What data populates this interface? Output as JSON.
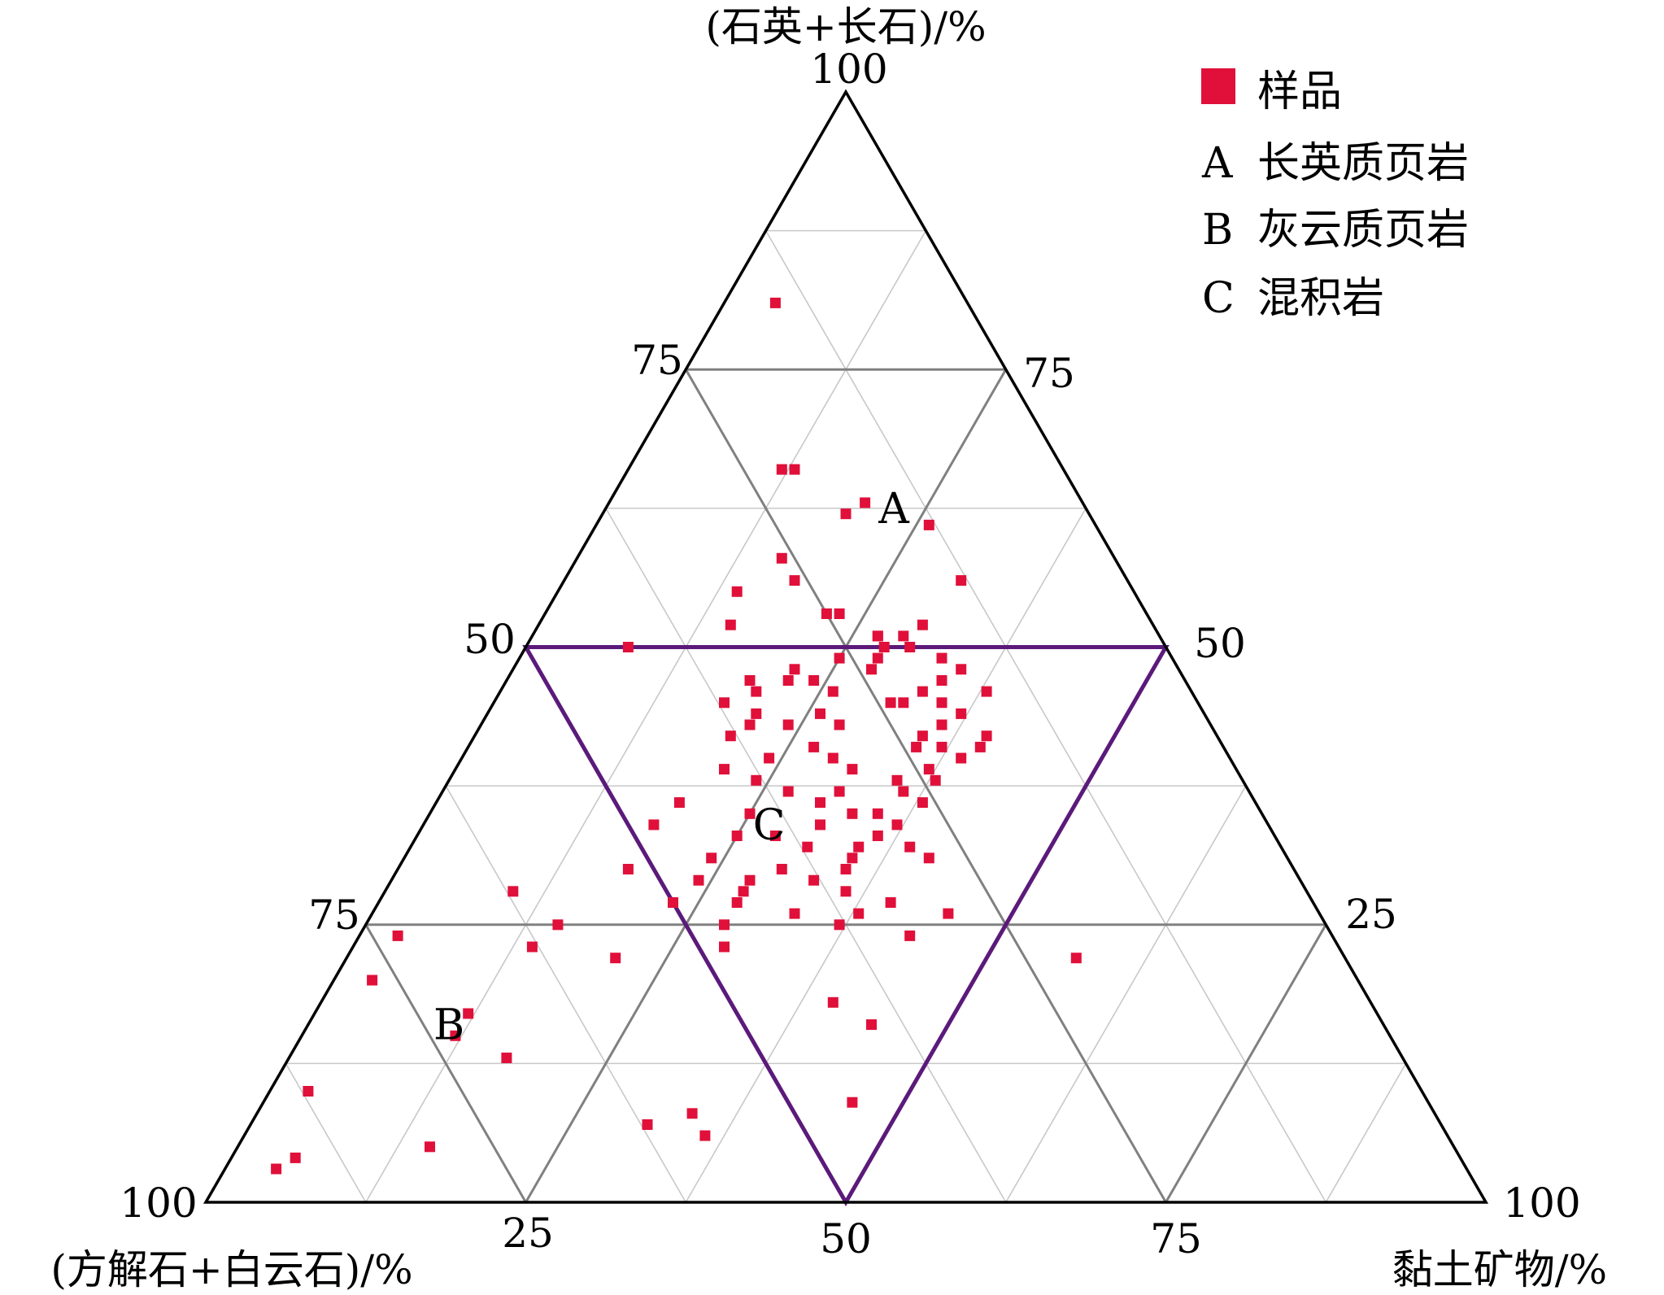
{
  "chart_data": {
    "type": "scatter",
    "subtype": "ternary",
    "axes": {
      "top": {
        "label": "(石英+长石)/%",
        "ticks": [
          "25",
          "50",
          "75",
          "100"
        ]
      },
      "left": {
        "label": "(方解石+白云石)/%",
        "ticks": [
          "25",
          "50",
          "75",
          "100"
        ]
      },
      "right": {
        "label": "黏土矿物/%",
        "ticks": [
          "25",
          "50",
          "75",
          "100"
        ]
      }
    },
    "grid": true,
    "grid_step": 12.5,
    "major_step": 25,
    "colors": {
      "points": "#e0103a",
      "outline": "#000000",
      "major_grid": "#808080",
      "minor_grid": "#c8c8c8",
      "region_c": "#5b1a7a"
    },
    "regions": [
      {
        "label": "A",
        "name": "长英质页岩",
        "marker": [
          62.5,
          15,
          22.5
        ]
      },
      {
        "label": "B",
        "name": "灰云质页岩",
        "marker": [
          16,
          73,
          11
        ]
      },
      {
        "label": "C",
        "name": "混积岩",
        "marker": [
          34,
          39,
          27
        ]
      }
    ],
    "legend": {
      "position": "top-right",
      "marker_label": "样品",
      "entries": [
        {
          "key": "A",
          "text": "长英质页岩"
        },
        {
          "key": "B",
          "text": "灰云质页岩"
        },
        {
          "key": "C",
          "text": "混积岩"
        }
      ]
    },
    "series": [
      {
        "name": "样品",
        "points_note": "each point is [石英+长石, 方解石+白云石, 黏土矿物] in %",
        "points": [
          [
            81,
            15,
            4
          ],
          [
            66,
            22,
            12
          ],
          [
            66,
            21,
            13
          ],
          [
            63,
            17,
            20
          ],
          [
            62,
            19,
            19
          ],
          [
            61,
            13,
            26
          ],
          [
            58,
            26,
            16
          ],
          [
            56,
            26,
            18
          ],
          [
            56,
            13,
            31
          ],
          [
            55,
            31,
            14
          ],
          [
            53,
            24,
            23
          ],
          [
            53,
            25,
            22
          ],
          [
            52,
            33,
            15
          ],
          [
            51,
            22,
            27
          ],
          [
            51,
            22,
            27
          ],
          [
            50,
            42,
            8
          ],
          [
            50,
            22,
            28
          ],
          [
            49,
            23,
            28
          ],
          [
            49,
            26,
            25
          ],
          [
            48,
            24,
            28
          ],
          [
            47,
            29,
            24
          ],
          [
            47,
            31,
            22
          ],
          [
            46,
            34,
            20
          ],
          [
            45,
            24,
            31
          ],
          [
            45,
            23,
            32
          ],
          [
            44,
            30,
            26
          ],
          [
            43,
            36,
            21
          ],
          [
            43,
            29,
            28
          ],
          [
            42,
            18,
            40
          ],
          [
            41,
            24,
            35
          ],
          [
            40,
            31,
            29
          ],
          [
            39,
            40,
            21
          ],
          [
            38,
            24,
            38
          ],
          [
            37,
            32,
            31
          ],
          [
            36,
            45,
            19
          ],
          [
            35,
            32,
            33
          ],
          [
            34,
            48,
            18
          ],
          [
            33,
            39,
            28
          ],
          [
            32,
            33,
            35
          ],
          [
            31,
            28,
            41
          ],
          [
            30,
            52,
            18
          ],
          [
            29,
            38,
            33
          ],
          [
            28,
            62,
            10
          ],
          [
            27,
            33,
            40
          ],
          [
            26,
            36,
            38
          ],
          [
            25,
            60,
            15
          ],
          [
            24,
            73,
            3
          ],
          [
            23,
            63,
            14
          ],
          [
            22,
            57,
            21
          ],
          [
            22,
            21,
            57
          ],
          [
            20,
            77,
            3
          ],
          [
            18,
            42,
            40
          ],
          [
            17,
            71,
            12
          ],
          [
            16,
            40,
            44
          ],
          [
            15,
            73,
            12
          ],
          [
            13,
            70,
            17
          ],
          [
            10,
            87,
            3
          ],
          [
            9,
            45,
            46
          ],
          [
            8,
            58,
            34
          ],
          [
            7,
            62,
            31
          ],
          [
            6,
            58,
            36
          ],
          [
            5,
            80,
            15
          ],
          [
            4,
            91,
            5
          ],
          [
            3,
            93,
            4
          ],
          [
            52,
            18,
            30
          ],
          [
            51,
            20,
            29
          ],
          [
            50,
            20,
            30
          ],
          [
            49,
            18,
            33
          ],
          [
            48,
            17,
            35
          ],
          [
            47,
            19,
            34
          ],
          [
            46,
            21,
            33
          ],
          [
            46,
            16,
            38
          ],
          [
            45,
            20,
            35
          ],
          [
            44,
            19,
            37
          ],
          [
            43,
            21,
            36
          ],
          [
            42,
            23,
            35
          ],
          [
            41,
            22,
            37
          ],
          [
            41,
            19,
            40
          ],
          [
            40,
            21,
            39
          ],
          [
            39,
            24,
            37
          ],
          [
            38,
            27,
            35
          ],
          [
            37,
            27,
            36
          ],
          [
            36,
            26,
            38
          ],
          [
            35,
            30,
            35
          ],
          [
            34,
            29,
            37
          ],
          [
            33,
            31,
            36
          ],
          [
            32,
            29,
            39
          ],
          [
            31,
            34,
            35
          ],
          [
            30,
            35,
            35
          ],
          [
            29,
            43,
            28
          ],
          [
            28,
            44,
            28
          ],
          [
            27,
            45,
            28
          ],
          [
            26,
            29,
            45
          ],
          [
            25,
            47,
            28
          ],
          [
            24,
            33,
            43
          ],
          [
            23,
            48,
            29
          ],
          [
            48,
            30,
            22
          ],
          [
            47,
            34,
            19
          ],
          [
            46,
            28,
            26
          ],
          [
            45,
            37,
            18
          ],
          [
            44,
            35,
            21
          ],
          [
            43,
            33,
            24
          ],
          [
            42,
            38,
            20
          ],
          [
            41,
            32,
            27
          ],
          [
            40,
            36,
            24
          ],
          [
            39,
            30,
            31
          ],
          [
            38,
            38,
            24
          ],
          [
            37,
            36,
            27
          ],
          [
            36,
            34,
            30
          ],
          [
            35,
            40,
            25
          ],
          [
            34,
            35,
            31
          ],
          [
            33,
            42,
            25
          ],
          [
            32,
            37,
            31
          ],
          [
            31,
            45,
            24
          ],
          [
            30,
            40,
            30
          ],
          [
            29,
            47,
            24
          ],
          [
            28,
            36,
            36
          ],
          [
            27,
            50,
            23
          ],
          [
            26,
            41,
            33
          ],
          [
            25,
            38,
            37
          ]
        ]
      }
    ]
  }
}
